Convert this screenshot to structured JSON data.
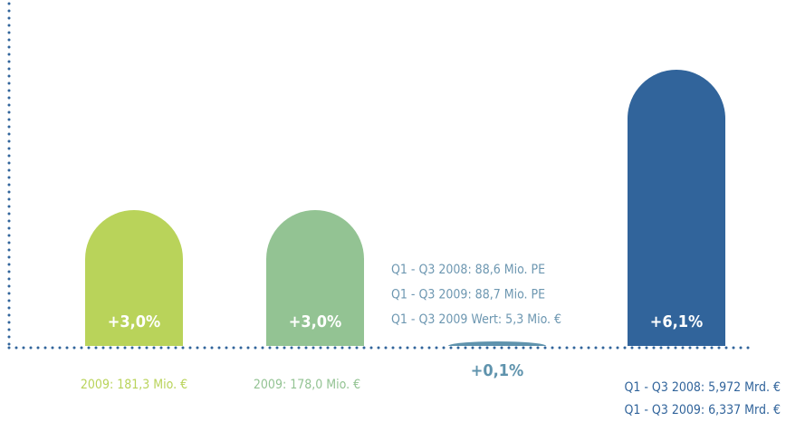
{
  "chart_data": {
    "type": "bar",
    "values": [
      3.0,
      3.0,
      0.1,
      6.1
    ],
    "value_labels": [
      "+3,0%",
      "+3,0%",
      "+0,1%",
      "+6,1%"
    ],
    "colors": [
      "#b9d35a",
      "#93c393",
      "#5f93ad",
      "#31649b"
    ],
    "notes": [
      [
        "2009: 181,3 Mio. €"
      ],
      [
        "2009: 178,0 Mio. €"
      ],
      [
        "Q1 - Q3 2008: 88,6 Mio. PE",
        "Q1 - Q3 2009: 88,7 Mio. PE",
        "Q1 - Q3 2009 Wert: 5,3 Mio. €"
      ],
      [
        "Q1 - Q3 2008: 5,972 Mrd. €",
        "Q1 - Q3 2009: 6,337 Mrd. €"
      ]
    ]
  }
}
